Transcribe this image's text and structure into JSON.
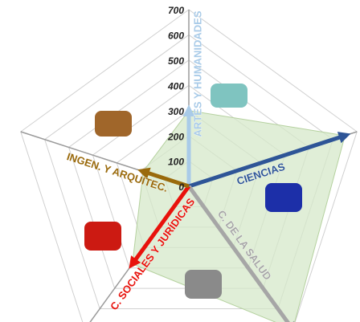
{
  "chart_data": {
    "type": "radar",
    "categories": [
      "ARTES Y HUMANIDADES",
      "CIENCIAS",
      "C. DE LA SALUD",
      "C. SOCIALES Y JURÍDICAS",
      "INGEN. Y ARQUITEC."
    ],
    "values": [
      300,
      650,
      700,
      380,
      190
    ],
    "colors": [
      "#a9cbe8",
      "#2e5597",
      "#a6a6a6",
      "#e8120c",
      "#9a6a0c"
    ],
    "area_color": "#d6e8c9",
    "ylim": [
      0,
      700
    ],
    "yticks": [
      0,
      100,
      200,
      300,
      400,
      500,
      600,
      700
    ],
    "grid": true
  }
}
